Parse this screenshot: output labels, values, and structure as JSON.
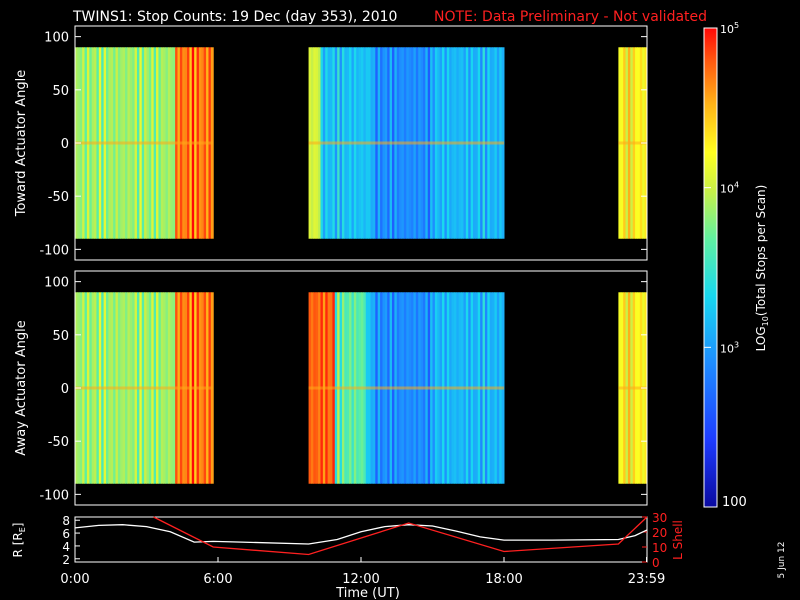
{
  "header": {
    "title": "TWINS1: Stop Counts: 19 Dec (day 353), 2010",
    "note": "NOTE: Data Preliminary - Not validated"
  },
  "side_label": "5 Jun 12",
  "chart_data": [
    {
      "type": "heatmap",
      "ylabel": "Toward Actuator Angle",
      "ylim": [
        -110,
        110
      ],
      "yticks": [
        "100",
        "50",
        "0",
        "-50",
        "-100"
      ],
      "ytick_values": [
        100,
        50,
        0,
        -50,
        -100
      ],
      "x_hours_range": [
        0,
        24
      ],
      "data_blocks_hours": [
        [
          0,
          5.8
        ],
        [
          9.8,
          18
        ],
        [
          22.8,
          24
        ]
      ],
      "angle_range": [
        -90,
        90
      ]
    },
    {
      "type": "heatmap",
      "ylabel": "Away Actuator Angle",
      "ylim": [
        -110,
        110
      ],
      "yticks": [
        "100",
        "50",
        "0",
        "-50",
        "-100"
      ],
      "ytick_values": [
        100,
        50,
        0,
        -50,
        -100
      ],
      "x_hours_range": [
        0,
        24
      ],
      "data_blocks_hours": [
        [
          0,
          5.8
        ],
        [
          9.8,
          18
        ],
        [
          22.8,
          24
        ]
      ],
      "angle_range": [
        -90,
        90
      ]
    },
    {
      "type": "line",
      "ylabel_left": "R [RE]",
      "ylabel_left_main": "R [R",
      "ylabel_left_sub": "E",
      "ylabel_left_end": "]",
      "ylabel_right": "L Shell",
      "left_ylim": [
        1.5,
        8.5
      ],
      "left_yticks": [
        "8",
        "6",
        "4",
        "2"
      ],
      "left_ytick_values": [
        8,
        6,
        4,
        2
      ],
      "right_ylim": [
        0,
        30
      ],
      "right_yticks": [
        "30",
        "20",
        "10",
        "0"
      ],
      "right_ytick_values": [
        30,
        20,
        10,
        0
      ],
      "series": [
        {
          "name": "",
          "color": "#ffffff",
          "axis": "left",
          "x": [
            0,
            1,
            2,
            3,
            4,
            5,
            5.8,
            7,
            9.8,
            11,
            12,
            13,
            14,
            15,
            16,
            17,
            18,
            20,
            22.8,
            23.5,
            24
          ],
          "y": [
            6.8,
            7.2,
            7.3,
            7.0,
            6.2,
            4.6,
            4.7,
            4.6,
            4.3,
            5.0,
            6.2,
            7.0,
            7.3,
            7.1,
            6.3,
            5.4,
            4.9,
            4.9,
            5.0,
            5.6,
            6.5
          ]
        },
        {
          "name": "",
          "color": "#ff2020",
          "axis": "right",
          "x": [
            3.3,
            5.8,
            9.8,
            14,
            18,
            22.8,
            24
          ],
          "y": [
            30,
            10,
            5,
            26,
            7,
            12,
            30
          ]
        }
      ],
      "xticks": [
        "0:00",
        "6:00",
        "12:00",
        "18:00",
        "23:59"
      ],
      "xtick_values": [
        0,
        6,
        12,
        18,
        23.98
      ],
      "xlabel": "Time (UT)"
    }
  ],
  "colorbar": {
    "label_main": "LOG",
    "label_sub": "10",
    "label_end": "(Total Stops per Scan)",
    "ticks": [
      "10",
      "10",
      "10"
    ],
    "tick_exps": [
      "5",
      "4",
      "3"
    ],
    "tick_values": [
      100000,
      10000,
      1000
    ],
    "bottom_label": "100",
    "range": [
      100,
      100000
    ],
    "scale": "log"
  }
}
